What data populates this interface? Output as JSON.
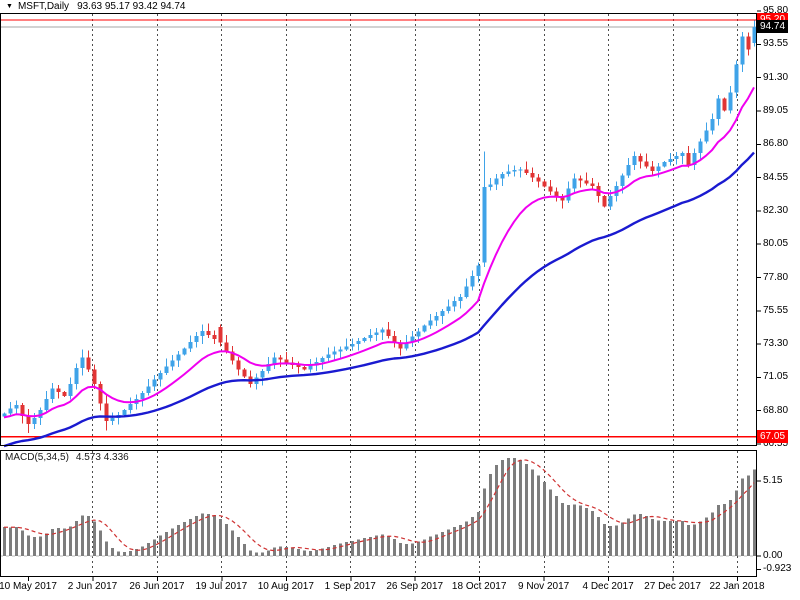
{
  "window": {
    "background": "#ffffff",
    "frame_color": "#000000",
    "grid_color": "#4d4d4d"
  },
  "header": {
    "symbol_label": "MSFT,Daily",
    "quote_line": "93.63 95.17 93.42 94.74"
  },
  "chart_data": {
    "type": "candlestick",
    "title": "MSFT,Daily",
    "symbol": "MSFT",
    "timeframe": "Daily",
    "last_bar": {
      "open": 93.63,
      "high": 95.17,
      "low": 93.42,
      "close": 94.74
    },
    "y_axis": {
      "tick_labels": [
        "95.80",
        "93.55",
        "91.30",
        "89.05",
        "86.80",
        "84.55",
        "82.30",
        "80.05",
        "77.80",
        "75.55",
        "73.30",
        "71.05",
        "68.80",
        "66.55"
      ],
      "visible_range": [
        66.2,
        96.0
      ]
    },
    "price_markers": [
      {
        "label": "95.20",
        "price": 95.2,
        "bg": "#ff0000"
      },
      {
        "label": "94.74",
        "price": 94.74,
        "bg": "#000000"
      },
      {
        "label": "67.05",
        "price": 67.05,
        "bg": "#ff0000"
      }
    ],
    "horizontal_lines": [
      {
        "name": "upper-red-line",
        "price": 95.2,
        "color": "#ff0000"
      },
      {
        "name": "lower-red-line",
        "price": 67.05,
        "color": "#ff0000"
      }
    ],
    "current_price_line": {
      "price": 94.74,
      "color": "#a6a6a6"
    },
    "x_axis": {
      "date_labels": [
        "10 May 2017",
        "2 Jun 2017",
        "26 Jun 2017",
        "19 Jul 2017",
        "10 Aug 2017",
        "1 Sep 2017",
        "26 Sep 2017",
        "18 Oct 2017",
        "9 Nov 2017",
        "4 Dec 2017",
        "27 Dec 2017",
        "22 Jan 2018"
      ]
    },
    "candles": {
      "up_color": "#3fa3e8",
      "down_color": "#e13434",
      "first_open": 68.4,
      "closes": [
        68.6,
        68.95,
        69.2,
        68.45,
        67.9,
        68.3,
        68.85,
        69.6,
        70.3,
        70.05,
        69.8,
        70.6,
        71.7,
        72.4,
        71.6,
        70.6,
        69.3,
        68.1,
        68.3,
        68.5,
        68.85,
        69.25,
        69.6,
        70.0,
        70.45,
        70.9,
        71.35,
        71.8,
        72.2,
        72.6,
        73.0,
        73.45,
        73.85,
        74.2,
        73.9,
        73.65,
        73.4,
        72.8,
        72.2,
        71.6,
        71.1,
        70.6,
        71.05,
        71.5,
        71.95,
        72.4,
        72.25,
        72.05,
        71.9,
        71.75,
        71.6,
        71.85,
        72.1,
        72.35,
        72.6,
        72.8,
        72.95,
        73.15,
        73.3,
        73.5,
        73.7,
        73.9,
        74.1,
        74.3,
        73.85,
        73.4,
        73.0,
        73.4,
        73.8,
        74.15,
        74.55,
        74.9,
        75.2,
        75.55,
        75.85,
        76.2,
        76.5,
        77.2,
        77.9,
        78.6,
        83.9,
        84.1,
        84.5,
        84.8,
        84.95,
        85.05,
        85.1,
        84.85,
        84.55,
        84.3,
        83.95,
        83.6,
        83.3,
        83.0,
        83.8,
        84.5,
        84.35,
        84.15,
        84.0,
        83.3,
        82.6,
        83.3,
        84.0,
        84.7,
        85.4,
        86.0,
        85.65,
        85.3,
        85.0,
        85.3,
        85.6,
        85.8,
        86.0,
        86.2,
        85.4,
        86.2,
        87.0,
        87.75,
        88.5,
        89.9,
        89.1,
        90.3,
        92.2,
        94.1,
        93.2,
        94.74
      ],
      "overrides": {
        "4": {
          "l": 67.3
        },
        "13": {
          "h": 72.95
        },
        "17": {
          "l": 67.45
        },
        "33": {
          "h": 74.62
        },
        "36": {
          "o": 74.45,
          "l": 73.15
        },
        "80": {
          "o": 78.8,
          "h": 86.3,
          "l": 78.5
        },
        "123": {
          "h": 94.4
        },
        "124": {
          "o": 94.1,
          "h": 94.35,
          "l": 92.8
        },
        "125": {
          "o": 93.63,
          "h": 95.17,
          "l": 93.42
        }
      }
    },
    "moving_averages": [
      {
        "name": "fast-ma-line",
        "period": 12,
        "seed": 68.3,
        "color": "#f000f0",
        "width": 2
      },
      {
        "name": "slow-ma-line",
        "period": 40,
        "seed": 66.3,
        "color": "#1a1ad0",
        "width": 2.4
      }
    ],
    "macd": {
      "label": "MACD(5,34,5)",
      "values_text": "4.573 4.336",
      "macd_value": 4.573,
      "signal_value": 4.336,
      "fast_period": 5,
      "slow_period": 34,
      "signal_period": 5,
      "fast_seed": 68.6,
      "slow_seed": 66.5,
      "tick_labels": [
        {
          "label": "5.15",
          "value": 5.15
        },
        {
          "label": "0.00",
          "value": 0
        },
        {
          "label": "-0.923",
          "value": -0.923
        }
      ],
      "histogram_color": "#7d7d7d",
      "signal_color": "#cf3232",
      "zero_line_color": "#b9b9b9"
    }
  }
}
